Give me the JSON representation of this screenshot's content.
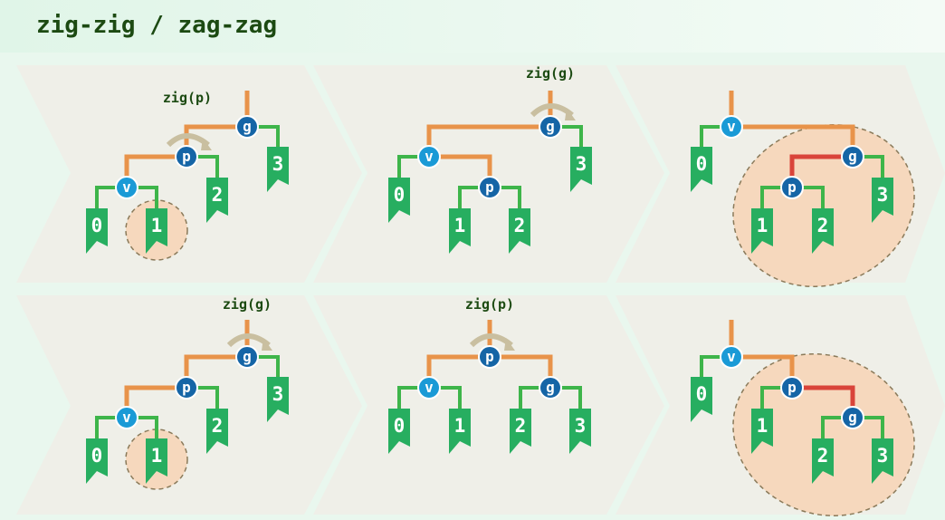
{
  "title": "zig-zig / zag-zag",
  "colors": {
    "background": "#e9f7ee",
    "panel": "#efefe8",
    "orange_edge": "#e8934a",
    "green_edge": "#3eb54a",
    "red_edge": "#d9443a",
    "node_dark": "#1565a6",
    "node_light": "#1a9ad6",
    "leaf": "#27ae60",
    "highlight_fill": "#f6d8bd",
    "arrow": "#c9bfa0",
    "label": "#1c4a12"
  },
  "nodes": {
    "v": "v",
    "p": "p",
    "g": "g"
  },
  "leaves": [
    "0",
    "1",
    "2",
    "3"
  ],
  "rows": [
    {
      "steps": [
        {
          "label": "zig(p)"
        },
        {
          "label": "zig(g)"
        },
        {
          "label": ""
        }
      ]
    },
    {
      "steps": [
        {
          "label": "zig(g)"
        },
        {
          "label": "zig(p)"
        },
        {
          "label": ""
        }
      ]
    }
  ]
}
